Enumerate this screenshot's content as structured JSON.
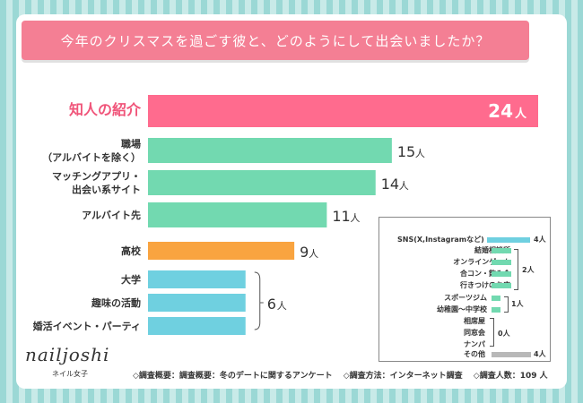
{
  "title": "今年のクリスマスを過ごす彼と、どのようにして出会いましたか？",
  "chart_data": {
    "type": "bar",
    "orientation": "horizontal",
    "title": "今年のクリスマスを過ごす彼と、どのようにして出会いましたか？",
    "unit": "人",
    "categories": [
      [
        "知人の紹介"
      ],
      [
        "職場",
        "（アルバイトを除く）"
      ],
      [
        "マッチングアプリ・",
        "出会い系サイト"
      ],
      [
        "アルバイト先"
      ],
      [
        "高校"
      ],
      [
        "大学"
      ],
      [
        "趣味の活動"
      ],
      [
        "婚活イベント・パーティ"
      ]
    ],
    "values": [
      24,
      15,
      14,
      11,
      9,
      6,
      6,
      6
    ],
    "value_labels": [
      "24",
      "15",
      "14",
      "11",
      "9",
      "",
      "",
      ""
    ],
    "group_label": "6",
    "colors": [
      "#ff6b8e",
      "#72d9b0",
      "#72d9b0",
      "#72d9b0",
      "#f9a440",
      "#6fd0e0",
      "#6fd0e0",
      "#6fd0e0"
    ],
    "highlight_label_color": "#f0557a",
    "xlim": [
      0,
      24
    ],
    "legend_box": {
      "sns": {
        "label": "SNS(X,Instagramなど)",
        "value": 4,
        "value_label": "4人",
        "color": "#6fd0e0"
      },
      "group_2": {
        "items": [
          "結婚相談所",
          "オンラインゲーム",
          "合コン・飲み会",
          "行きつけのお店"
        ],
        "value": 2,
        "value_label": "2人",
        "color": "#72d9b0"
      },
      "group_1": {
        "items": [
          "スポーツジム",
          "幼稚園～中学校"
        ],
        "value": 1,
        "value_label": "1人",
        "color": "#72d9b0"
      },
      "group_0": {
        "items": [
          "相席屋",
          "同窓会",
          "ナンパ"
        ],
        "value": 0,
        "value_label": "0人"
      },
      "other": {
        "label": "その他",
        "value": 4,
        "value_label": "4人",
        "color": "#b8b8b8"
      }
    }
  },
  "brand": {
    "logo": "nailjoshi",
    "sub": "ネイル女子"
  },
  "footer": {
    "overview": "◇調査概要：調査概要：冬のデートに関するアンケート",
    "method": "◇調査方法：インターネット調査",
    "count": "◇調査人数：109 人"
  }
}
